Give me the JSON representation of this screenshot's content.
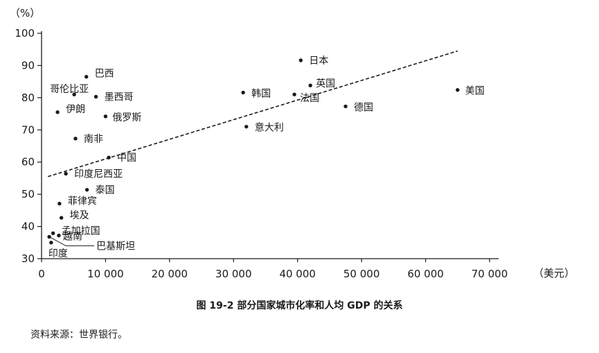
{
  "chart_data": {
    "type": "scatter",
    "title": "",
    "xlabel": "（美元）",
    "ylabel": "（%）",
    "xlim": [
      0,
      70000
    ],
    "ylim": [
      30,
      100
    ],
    "x_ticks": [
      0,
      10000,
      20000,
      30000,
      40000,
      50000,
      60000,
      70000
    ],
    "x_tick_labels": [
      "0",
      "10 000",
      "20 000",
      "30 000",
      "40 000",
      "50 000",
      "60 000",
      "70 000"
    ],
    "y_ticks": [
      30,
      40,
      50,
      60,
      70,
      80,
      90,
      100
    ],
    "y_tick_labels": [
      "30",
      "40",
      "50",
      "60",
      "70",
      "80",
      "90",
      "100"
    ],
    "grid": false,
    "legend": "none",
    "points": [
      {
        "label": "日本",
        "x": 40500,
        "y": 91.6
      },
      {
        "label": "英国",
        "x": 42000,
        "y": 83.8
      },
      {
        "label": "法国",
        "x": 39500,
        "y": 81
      },
      {
        "label": "韩国",
        "x": 31500,
        "y": 81.6
      },
      {
        "label": "美国",
        "x": 65000,
        "y": 82.4
      },
      {
        "label": "德国",
        "x": 47500,
        "y": 77.3
      },
      {
        "label": "意大利",
        "x": 32000,
        "y": 71
      },
      {
        "label": "巴西",
        "x": 7000,
        "y": 86.5
      },
      {
        "label": "哥伦比亚",
        "x": 5100,
        "y": 81
      },
      {
        "label": "墨西哥",
        "x": 8500,
        "y": 80.3
      },
      {
        "label": "伊朗",
        "x": 2500,
        "y": 75.5
      },
      {
        "label": "俄罗斯",
        "x": 10000,
        "y": 74.2
      },
      {
        "label": "南非",
        "x": 5300,
        "y": 67.3
      },
      {
        "label": "中国",
        "x": 10500,
        "y": 61.4
      },
      {
        "label": "印度尼西亚",
        "x": 3800,
        "y": 56.4
      },
      {
        "label": "泰国",
        "x": 7100,
        "y": 51.4
      },
      {
        "label": "菲律宾",
        "x": 2800,
        "y": 47.1
      },
      {
        "label": "埃及",
        "x": 3100,
        "y": 42.7
      },
      {
        "label": "孟加拉国",
        "x": 1800,
        "y": 37.9
      },
      {
        "label": "越南",
        "x": 2700,
        "y": 37.2
      },
      {
        "label": "巴基斯坦",
        "x": 1200,
        "y": 36.8
      },
      {
        "label": "印度",
        "x": 1500,
        "y": 35
      }
    ],
    "trendline": {
      "style": "dashed",
      "x": [
        1000,
        65000
      ],
      "y": [
        55.5,
        94.5
      ]
    }
  },
  "caption": "图 19-2   部分国家城市化率和人均 GDP 的关系",
  "source": "资料来源：世界银行。"
}
